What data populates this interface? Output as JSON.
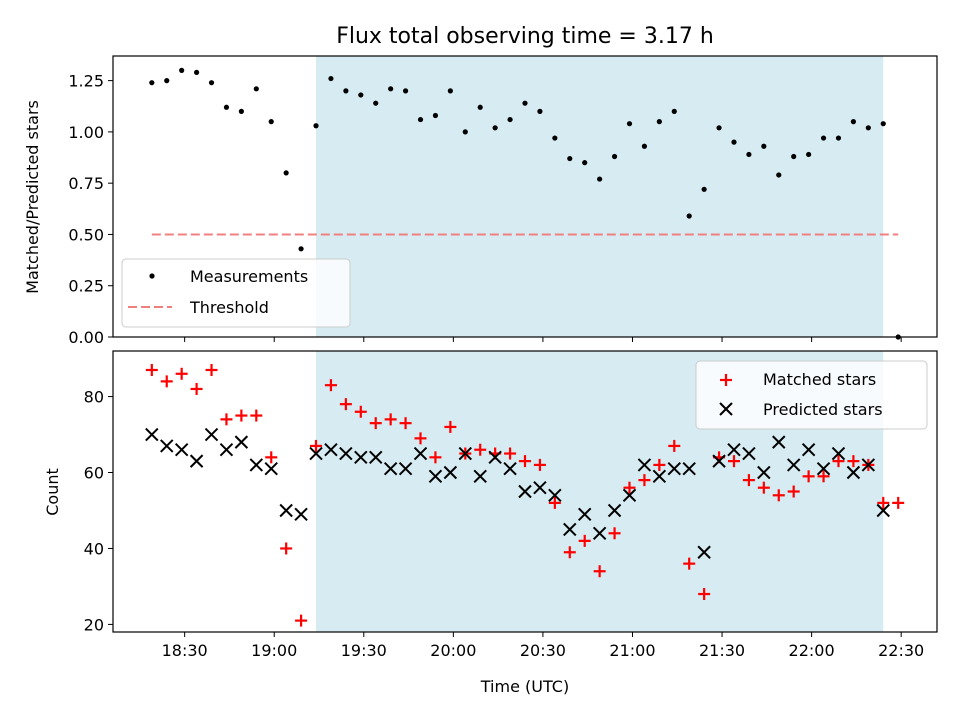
{
  "chart_data": [
    {
      "type": "scatter",
      "title": "Flux total observing time = 3.17 h",
      "xlabel": "",
      "ylabel": "Matched/Predicted stars",
      "ylim": [
        0,
        1.37
      ],
      "yticks": [
        "0.00",
        "0.25",
        "0.50",
        "0.75",
        "1.00",
        "1.25"
      ],
      "x_time_range": [
        "18:06",
        "22:42"
      ],
      "xticks": [
        "18:30",
        "19:00",
        "19:30",
        "20:00",
        "20:30",
        "21:00",
        "21:30",
        "22:00",
        "22:30"
      ],
      "shaded_span": [
        "19:14",
        "22:24"
      ],
      "legend_position": "lower-left",
      "series": [
        {
          "name": "Measurements",
          "marker": "dot",
          "color": "#000000",
          "x": [
            "18:19",
            "18:24",
            "18:29",
            "18:34",
            "18:39",
            "18:44",
            "18:49",
            "18:54",
            "18:59",
            "19:04",
            "19:09",
            "19:14",
            "19:19",
            "19:24",
            "19:29",
            "19:34",
            "19:39",
            "19:44",
            "19:49",
            "19:54",
            "19:59",
            "20:04",
            "20:09",
            "20:14",
            "20:19",
            "20:24",
            "20:29",
            "20:34",
            "20:39",
            "20:44",
            "20:49",
            "20:54",
            "20:59",
            "21:04",
            "21:09",
            "21:14",
            "21:19",
            "21:24",
            "21:29",
            "21:34",
            "21:39",
            "21:44",
            "21:49",
            "21:54",
            "21:59",
            "22:04",
            "22:09",
            "22:14",
            "22:19",
            "22:24",
            "22:29"
          ],
          "y": [
            1.24,
            1.25,
            1.3,
            1.29,
            1.24,
            1.12,
            1.1,
            1.21,
            1.05,
            0.8,
            0.43,
            1.03,
            1.26,
            1.2,
            1.18,
            1.14,
            1.21,
            1.2,
            1.06,
            1.08,
            1.2,
            1.0,
            1.12,
            1.02,
            1.06,
            1.14,
            1.1,
            0.97,
            0.87,
            0.85,
            0.77,
            0.88,
            1.04,
            0.93,
            1.05,
            1.1,
            0.59,
            0.72,
            1.02,
            0.95,
            0.89,
            0.93,
            0.79,
            0.88,
            0.89,
            0.97,
            0.97,
            1.05,
            1.02,
            1.04,
            0.0
          ]
        },
        {
          "name": "Threshold",
          "marker": "dashed-line",
          "color": "#f08080",
          "x": [
            "18:19",
            "22:29"
          ],
          "y": [
            0.5,
            0.5
          ]
        }
      ]
    },
    {
      "type": "scatter",
      "title": "",
      "xlabel": "Time (UTC)",
      "ylabel": "Count",
      "ylim": [
        18,
        92
      ],
      "yticks": [
        "20",
        "40",
        "60",
        "80"
      ],
      "x_time_range": [
        "18:06",
        "22:42"
      ],
      "xticks": [
        "18:30",
        "19:00",
        "19:30",
        "20:00",
        "20:30",
        "21:00",
        "21:30",
        "22:00",
        "22:30"
      ],
      "shaded_span": [
        "19:14",
        "22:24"
      ],
      "legend_position": "upper-right",
      "series": [
        {
          "name": "Matched stars",
          "marker": "plus",
          "color": "#ff0000",
          "x": [
            "18:19",
            "18:24",
            "18:29",
            "18:34",
            "18:39",
            "18:44",
            "18:49",
            "18:54",
            "18:59",
            "19:04",
            "19:09",
            "19:14",
            "19:19",
            "19:24",
            "19:29",
            "19:34",
            "19:39",
            "19:44",
            "19:49",
            "19:54",
            "19:59",
            "20:04",
            "20:09",
            "20:14",
            "20:19",
            "20:24",
            "20:29",
            "20:34",
            "20:39",
            "20:44",
            "20:49",
            "20:54",
            "20:59",
            "21:04",
            "21:09",
            "21:14",
            "21:19",
            "21:24",
            "21:29",
            "21:34",
            "21:39",
            "21:44",
            "21:49",
            "21:54",
            "21:59",
            "22:04",
            "22:09",
            "22:14",
            "22:19",
            "22:24",
            "22:29"
          ],
          "y": [
            87,
            84,
            86,
            82,
            87,
            74,
            75,
            75,
            64,
            40,
            21,
            67,
            83,
            78,
            76,
            73,
            74,
            73,
            69,
            64,
            72,
            65,
            66,
            65,
            65,
            63,
            62,
            52,
            39,
            42,
            34,
            44,
            56,
            58,
            62,
            67,
            36,
            28,
            64,
            63,
            58,
            56,
            54,
            55,
            59,
            59,
            63,
            63,
            62,
            52,
            52
          ]
        },
        {
          "name": "Predicted stars",
          "marker": "x",
          "color": "#000000",
          "x": [
            "18:19",
            "18:24",
            "18:29",
            "18:34",
            "18:39",
            "18:44",
            "18:49",
            "18:54",
            "18:59",
            "19:04",
            "19:09",
            "19:14",
            "19:19",
            "19:24",
            "19:29",
            "19:34",
            "19:39",
            "19:44",
            "19:49",
            "19:54",
            "19:59",
            "20:04",
            "20:09",
            "20:14",
            "20:19",
            "20:24",
            "20:29",
            "20:34",
            "20:39",
            "20:44",
            "20:49",
            "20:54",
            "20:59",
            "21:04",
            "21:09",
            "21:14",
            "21:19",
            "21:24",
            "21:29",
            "21:34",
            "21:39",
            "21:44",
            "21:49",
            "21:54",
            "21:59",
            "22:04",
            "22:09",
            "22:14",
            "22:19",
            "22:24"
          ],
          "y": [
            70,
            67,
            66,
            63,
            70,
            66,
            68,
            62,
            61,
            50,
            49,
            65,
            66,
            65,
            64,
            64,
            61,
            61,
            65,
            59,
            60,
            65,
            59,
            64,
            61,
            55,
            56,
            54,
            45,
            49,
            44,
            50,
            54,
            62,
            59,
            61,
            61,
            39,
            63,
            66,
            65,
            60,
            68,
            62,
            66,
            61,
            65,
            60,
            62,
            50
          ]
        }
      ]
    }
  ]
}
